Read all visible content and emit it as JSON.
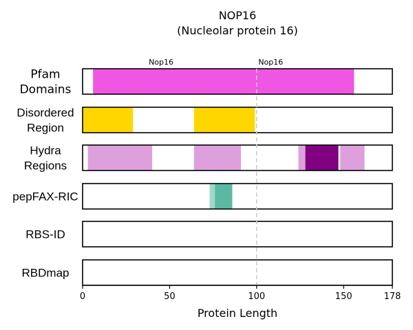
{
  "chart_data": {
    "type": "bar",
    "title": "NOP16",
    "subtitle": "(Nucleolar protein 16)",
    "xlabel": "Protein Length",
    "xlim": [
      0,
      178
    ],
    "xticks": [
      0,
      50,
      100,
      150,
      178
    ],
    "reference_line": 100,
    "tracks": [
      {
        "label_lines": [
          "Pfam",
          "Domains"
        ],
        "segments": [
          {
            "start": 6,
            "end": 156,
            "color": "#F056E4"
          }
        ],
        "annotations": [
          {
            "text": "Nop16",
            "x": 38
          },
          {
            "text": "Nop16",
            "x": 101
          }
        ]
      },
      {
        "label_lines": [
          "Disordered",
          "Region"
        ],
        "segments": [
          {
            "start": 0,
            "end": 29,
            "color": "#FFD700"
          },
          {
            "start": 64,
            "end": 99,
            "color": "#FFD700"
          }
        ]
      },
      {
        "label_lines": [
          "Hydra",
          "Regions"
        ],
        "segments": [
          {
            "start": 3,
            "end": 40,
            "color": "#DDA0DD"
          },
          {
            "start": 64,
            "end": 91,
            "color": "#DDA0DD"
          },
          {
            "start": 124,
            "end": 128,
            "color": "#DDA0DD"
          },
          {
            "start": 128,
            "end": 147,
            "color": "#800080"
          },
          {
            "start": 148,
            "end": 162,
            "color": "#DDA0DD"
          }
        ]
      },
      {
        "label_lines": [
          "pepFAX-RIC"
        ],
        "segments": [
          {
            "start": 73,
            "end": 76,
            "color": "#9FD8C8"
          },
          {
            "start": 76,
            "end": 86,
            "color": "#5BB9A3"
          }
        ]
      },
      {
        "label_lines": [
          "RBS-ID"
        ],
        "segments": []
      },
      {
        "label_lines": [
          "RBDmap"
        ],
        "segments": []
      }
    ]
  }
}
